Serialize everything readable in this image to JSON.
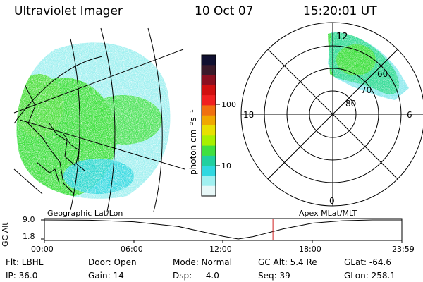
{
  "header": {
    "title": "Ultraviolet Imager",
    "date": "10 Oct 07",
    "time": "15:20:01 UT"
  },
  "colorbar": {
    "label": "photon cm⁻²s⁻¹",
    "ticks": [
      "100",
      "10"
    ],
    "colors": [
      "#101030",
      "#3a1a2a",
      "#8a1020",
      "#d01010",
      "#f02020",
      "#f07010",
      "#f0a800",
      "#e8e000",
      "#a8f000",
      "#40e040",
      "#20d0a0",
      "#30d8e0",
      "#a0f0f0",
      "#e8f8f8"
    ]
  },
  "polar": {
    "lat_labels": [
      "60",
      "70",
      "80"
    ],
    "mlt_labels": {
      "top": "12",
      "left": "18",
      "right": "6",
      "bottom": "0"
    }
  },
  "timeline": {
    "left_label": "Geographic Lat/Lon",
    "right_label": "Apex MLat/MLT",
    "axis_label": "GC Alt",
    "y_ticks": [
      "9.0",
      "1.8"
    ],
    "x_ticks": [
      "00:00",
      "06:00",
      "12:00",
      "18:00",
      "23:59"
    ],
    "curve": [
      {
        "t": 0.0,
        "alt": 9.0
      },
      {
        "t": 3.0,
        "alt": 8.9
      },
      {
        "t": 6.0,
        "alt": 8.3
      },
      {
        "t": 9.0,
        "alt": 6.5
      },
      {
        "t": 12.0,
        "alt": 2.8
      },
      {
        "t": 13.0,
        "alt": 1.8
      },
      {
        "t": 14.0,
        "alt": 2.7
      },
      {
        "t": 16.0,
        "alt": 5.6
      },
      {
        "t": 18.0,
        "alt": 7.8
      },
      {
        "t": 20.0,
        "alt": 8.7
      },
      {
        "t": 22.0,
        "alt": 9.0
      },
      {
        "t": 23.98,
        "alt": 9.0
      }
    ],
    "current_time": 15.33,
    "current_color": "#d02020"
  },
  "info": {
    "flt": "Flt: LBHL",
    "door": "Door: Open",
    "mode": "Mode: Normal",
    "gcalt": "GC Alt: 5.4 Re",
    "glat": "GLat: -64.6",
    "ip": "IP: 36.0",
    "gain": "Gain: 14",
    "dsp": "Dsp:    -4.0",
    "seq": "Seq: 39",
    "glon": "GLon: 258.1"
  }
}
